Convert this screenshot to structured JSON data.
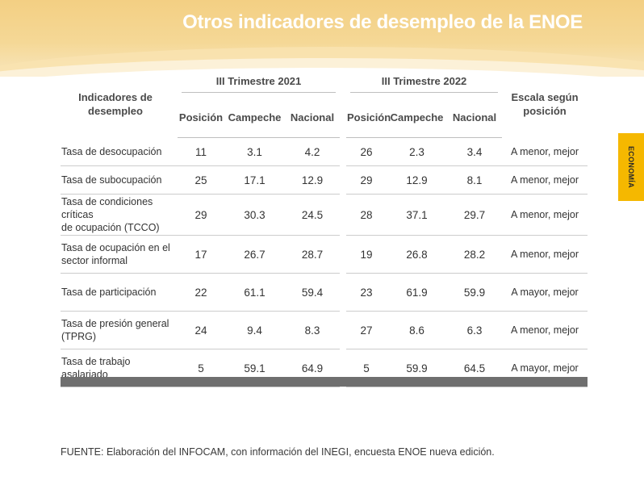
{
  "title": "Otros indicadores de desempleo de la ENOE",
  "side_tab": "ECONOMÍA",
  "header": {
    "indicator_line1": "Indicadores de",
    "indicator_line2": "desempleo",
    "period1": "III Trimestre 2021",
    "period2": "III Trimestre 2022",
    "scale_line1": "Escala según",
    "scale_line2": "posición",
    "col_position": "Posición",
    "col_campeche": "Campeche",
    "col_nacional": "Nacional"
  },
  "rows": [
    {
      "name1": "Tasa de desocupación",
      "name2": "",
      "p21": "11",
      "c21": "3.1",
      "n21": "4.2",
      "p22": "26",
      "c22": "2.3",
      "n22": "3.4",
      "scale": "A menor, mejor"
    },
    {
      "name1": "Tasa de subocupación",
      "name2": "",
      "p21": "25",
      "c21": "17.1",
      "n21": "12.9",
      "p22": "29",
      "c22": "12.9",
      "n22": "8.1",
      "scale": "A menor, mejor"
    },
    {
      "name1": "Tasa de condiciones críticas",
      "name2": "de ocupación (TCCO)",
      "p21": "29",
      "c21": "30.3",
      "n21": "24.5",
      "p22": "28",
      "c22": "37.1",
      "n22": "29.7",
      "scale": "A menor, mejor"
    },
    {
      "name1": "Tasa de ocupación en el",
      "name2": "sector informal",
      "p21": "17",
      "c21": "26.7",
      "n21": "28.7",
      "p22": "19",
      "c22": "26.8",
      "n22": "28.2",
      "scale": "A menor, mejor"
    },
    {
      "name1": "Tasa de participación",
      "name2": "",
      "p21": "22",
      "c21": "61.1",
      "n21": "59.4",
      "p22": "23",
      "c22": "61.9",
      "n22": "59.9",
      "scale": "A mayor, mejor"
    },
    {
      "name1": "Tasa de presión general",
      "name2": "(TPRG)",
      "p21": "24",
      "c21": "9.4",
      "n21": "8.3",
      "p22": "27",
      "c22": "8.6",
      "n22": "6.3",
      "scale": "A menor, mejor"
    },
    {
      "name1": "Tasa de trabajo asalariado",
      "name2": "",
      "p21": "5",
      "c21": "59.1",
      "n21": "64.9",
      "p22": "5",
      "c22": "59.9",
      "n22": "64.5",
      "scale": "A mayor, mejor"
    }
  ],
  "source": "FUENTE: Elaboración del INFOCAM, con información del INEGI, encuesta ENOE nueva edición."
}
